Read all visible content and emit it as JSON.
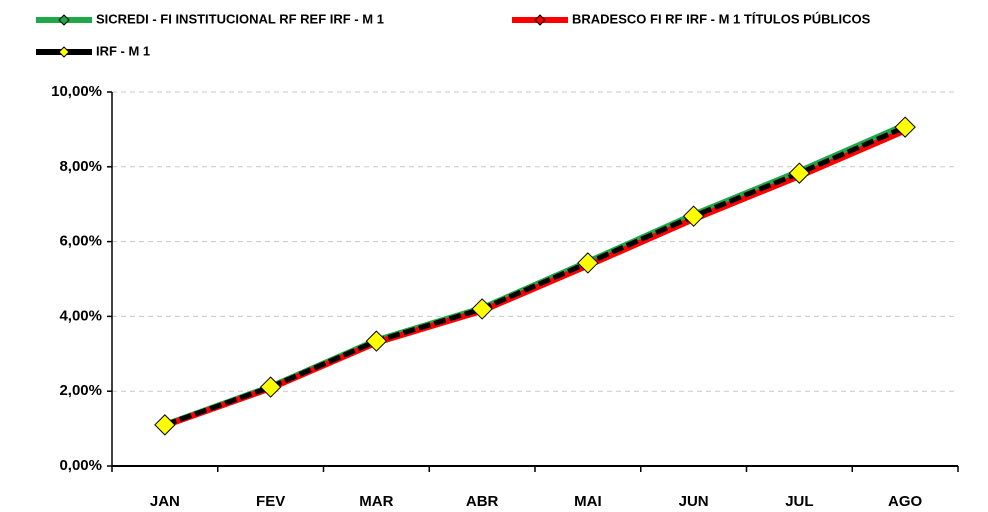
{
  "chart_data": {
    "type": "line",
    "categories": [
      "JAN",
      "FEV",
      "MAR",
      "ABR",
      "MAI",
      "JUN",
      "JUL",
      "AGO"
    ],
    "series": [
      {
        "name": "SICREDI - FI INSTITUCIONAL RF REF IRF - M 1",
        "color": "#1fa847",
        "values": [
          1.1,
          2.12,
          3.36,
          4.22,
          5.46,
          6.72,
          7.88,
          9.12
        ]
      },
      {
        "name": "BRADESCO FI RF IRF - M 1 TÍTULOS PÚBLICOS",
        "color": "#ff0000",
        "values": [
          1.08,
          2.08,
          3.3,
          4.15,
          5.36,
          6.6,
          7.75,
          8.97
        ]
      },
      {
        "name": "IRF - M 1",
        "color": "#000000",
        "marker_color": "#ffff00",
        "values": [
          1.1,
          2.11,
          3.34,
          4.2,
          5.43,
          6.68,
          7.83,
          9.06
        ]
      }
    ],
    "ylim": [
      0,
      10
    ],
    "yticks": [
      {
        "value": 0,
        "label": "0,00%"
      },
      {
        "value": 2,
        "label": "2,00%"
      },
      {
        "value": 4,
        "label": "4,00%"
      },
      {
        "value": 6,
        "label": "6,00%"
      },
      {
        "value": 8,
        "label": "8,00%"
      },
      {
        "value": 10,
        "label": "10,00%"
      }
    ],
    "grid": true,
    "legend": "top"
  }
}
